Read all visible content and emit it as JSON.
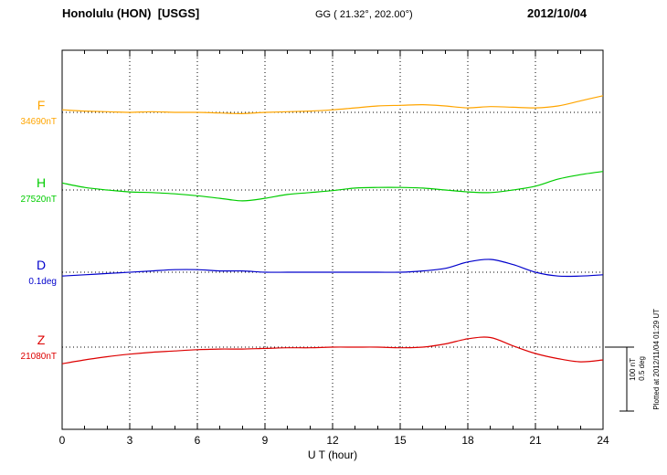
{
  "header": {
    "station": "Honolulu (HON)  [USGS]",
    "coords": "GG ( 21.32°, 202.00°)",
    "date": "2012/10/04"
  },
  "scalebar": {
    "nt_label": "100 nT",
    "deg_label": "0.5 deg"
  },
  "footer": {
    "plotted_note": "Plotted at 2012/11/04 01:29 UT"
  },
  "chart_data": {
    "type": "line",
    "title": "Honolulu (HON) [USGS] magnetogram 2012/10/04",
    "xlabel": "U T (hour)",
    "x_range": [
      0,
      24
    ],
    "x_ticks": [
      0,
      3,
      6,
      9,
      12,
      15,
      18,
      21,
      24
    ],
    "x_hours": [
      0,
      1,
      2,
      3,
      4,
      5,
      6,
      7,
      8,
      9,
      10,
      11,
      12,
      13,
      14,
      15,
      16,
      17,
      18,
      19,
      20,
      21,
      22,
      23,
      24
    ],
    "grid": "dotted vertical at 3h intervals, dotted horizontal baseline per trace",
    "scale": {
      "nT_per_div": 100,
      "deg_per_div": 0.5
    },
    "series": [
      {
        "name": "F",
        "baseline_label": "34690nT",
        "baseline_value": 34690,
        "unit": "nT",
        "color": "#ffa500",
        "offsets": [
          4,
          2,
          1,
          0,
          1,
          0,
          0,
          -1,
          -2,
          0,
          1,
          2,
          4,
          7,
          10,
          11,
          12,
          10,
          7,
          9,
          8,
          7,
          10,
          18,
          26
        ]
      },
      {
        "name": "H",
        "baseline_label": "27520nT",
        "baseline_value": 27520,
        "unit": "nT",
        "color": "#00cc00",
        "offsets": [
          11,
          4,
          0,
          -3,
          -4,
          -6,
          -9,
          -13,
          -17,
          -13,
          -7,
          -4,
          -1,
          3,
          4,
          4,
          3,
          0,
          -3,
          -4,
          0,
          6,
          17,
          24,
          29
        ]
      },
      {
        "name": "D",
        "baseline_label": "0.1deg",
        "baseline_value": 0.1,
        "unit": "deg",
        "color": "#0000cc",
        "offsets": [
          -0.03,
          -0.02,
          -0.01,
          0,
          0.01,
          0.02,
          0.02,
          0.01,
          0.01,
          0,
          0,
          0,
          0,
          0,
          0,
          0,
          0.01,
          0.03,
          0.08,
          0.1,
          0.06,
          0,
          -0.03,
          -0.03,
          -0.02
        ]
      },
      {
        "name": "Z",
        "baseline_label": "21080nT",
        "baseline_value": 21080,
        "unit": "nT",
        "color": "#dd0000",
        "offsets": [
          -26,
          -20,
          -15,
          -11,
          -8,
          -6,
          -4,
          -3,
          -3,
          -2,
          -1,
          -1,
          0,
          0,
          0,
          -1,
          0,
          5,
          13,
          15,
          2,
          -10,
          -18,
          -23,
          -20
        ]
      }
    ]
  }
}
